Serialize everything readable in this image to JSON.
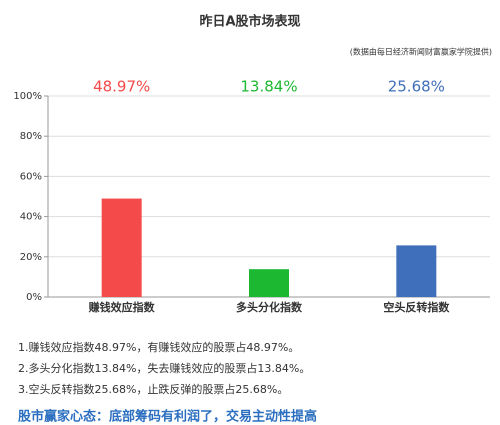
{
  "chart_data": {
    "type": "bar",
    "title": "昨日A股市场表现",
    "subtitle": "(数据由每日经济新闻财富赢家学院提供)",
    "categories": [
      "赚钱效应指数",
      "多头分化指数",
      "空头反转指数"
    ],
    "values": [
      48.97,
      13.84,
      25.68
    ],
    "value_labels": [
      "48.97%",
      "13.84%",
      "25.68%"
    ],
    "colors": [
      "#f44a4a",
      "#1db832",
      "#3f6fba"
    ],
    "ylim": [
      0,
      100
    ],
    "yticks": [
      {
        "value": 0,
        "label": "0%"
      },
      {
        "value": 20,
        "label": "20%"
      },
      {
        "value": 40,
        "label": "40%"
      },
      {
        "value": 60,
        "label": "60%"
      },
      {
        "value": 80,
        "label": "80%"
      },
      {
        "value": 100,
        "label": "100%"
      }
    ],
    "grid": true,
    "notes": [
      "1.赚钱效应指数48.97%，有赚钱效应的股票占48.97%。",
      "2.多头分化指数13.84%，失去赚钱效应的股票占13.84%。",
      "3.空头反转指数25.68%，止跌反弹的股票占25.68%。"
    ],
    "footer": "股市赢家心态：底部筹码有利润了，交易主动性提高"
  }
}
